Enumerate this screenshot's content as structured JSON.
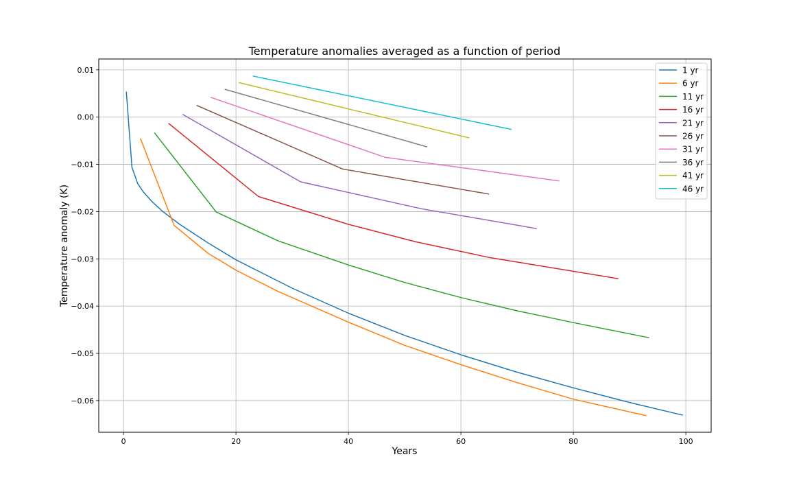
{
  "chart_data": {
    "type": "line",
    "title": "Temperature anomalies averaged as a function of period",
    "xlabel": "Years",
    "ylabel": "Temperature anomaly (K)",
    "xlim": [
      -4.4,
      104.5
    ],
    "ylim": [
      -0.0667,
      0.0123
    ],
    "xticks": [
      0,
      20,
      40,
      60,
      80,
      100
    ],
    "yticks": [
      -0.06,
      -0.05,
      -0.04,
      -0.03,
      -0.02,
      -0.01,
      0.0,
      0.01
    ],
    "xtick_labels": [
      "0",
      "20",
      "40",
      "60",
      "80",
      "100"
    ],
    "ytick_labels": [
      "−0.06",
      "−0.05",
      "−0.04",
      "−0.03",
      "−0.02",
      "−0.01",
      "0.00",
      "0.01"
    ],
    "grid": true,
    "legend_position": "top-right",
    "series": [
      {
        "name": "1 yr",
        "color": "#1f77b4",
        "x": [
          0.5,
          1.5,
          2.5,
          3.5,
          5,
          7,
          10,
          15,
          20,
          30,
          40,
          50,
          60,
          70,
          80,
          90,
          99.5
        ],
        "y": [
          0.0054,
          -0.0106,
          -0.014,
          -0.0158,
          -0.0178,
          -0.02,
          -0.0227,
          -0.0266,
          -0.0302,
          -0.0362,
          -0.0415,
          -0.0462,
          -0.0503,
          -0.054,
          -0.0573,
          -0.0604,
          -0.0631
        ]
      },
      {
        "name": "6 yr",
        "color": "#ff7f0e",
        "x": [
          3,
          9,
          15,
          20,
          27.5,
          40,
          50,
          60,
          70,
          80,
          93
        ],
        "y": [
          -0.0045,
          -0.0229,
          -0.0288,
          -0.0324,
          -0.0369,
          -0.0434,
          -0.0483,
          -0.0524,
          -0.0562,
          -0.0597,
          -0.0632
        ]
      },
      {
        "name": "11 yr",
        "color": "#2ca02c",
        "x": [
          5.5,
          16.5,
          27.5,
          40,
          50,
          60,
          70,
          80,
          93.5
        ],
        "y": [
          -0.0033,
          -0.0201,
          -0.0262,
          -0.0313,
          -0.035,
          -0.0382,
          -0.041,
          -0.0435,
          -0.0467
        ]
      },
      {
        "name": "16 yr",
        "color": "#d62728",
        "x": [
          8,
          24,
          40,
          52,
          65,
          88
        ],
        "y": [
          -0.0013,
          -0.0168,
          -0.0227,
          -0.0264,
          -0.0297,
          -0.0342
        ]
      },
      {
        "name": "21 yr",
        "color": "#9467bd",
        "x": [
          10.5,
          31.5,
          53,
          73.5
        ],
        "y": [
          0.0006,
          -0.0137,
          -0.0194,
          -0.0236
        ]
      },
      {
        "name": "26 yr",
        "color": "#8c564b",
        "x": [
          13,
          39,
          65
        ],
        "y": [
          0.0025,
          -0.011,
          -0.0163
        ]
      },
      {
        "name": "31 yr",
        "color": "#e377c2",
        "x": [
          15.5,
          46.5,
          77.5
        ],
        "y": [
          0.0042,
          -0.0085,
          -0.0135
        ]
      },
      {
        "name": "36 yr",
        "color": "#7f7f7f",
        "x": [
          18,
          54
        ],
        "y": [
          0.0059,
          -0.0063
        ]
      },
      {
        "name": "41 yr",
        "color": "#bcbd22",
        "x": [
          20.5,
          61.5
        ],
        "y": [
          0.0073,
          -0.0044
        ]
      },
      {
        "name": "46 yr",
        "color": "#17becf",
        "x": [
          23,
          69
        ],
        "y": [
          0.0087,
          -0.0026
        ]
      }
    ]
  }
}
